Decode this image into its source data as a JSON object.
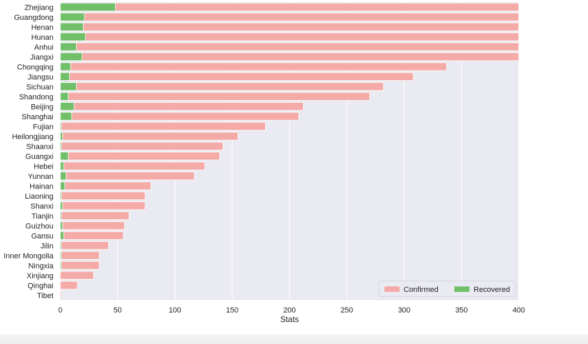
{
  "chart_data": {
    "type": "bar",
    "orientation": "horizontal",
    "stacked_overlay": true,
    "title": "",
    "xlabel": "Stats",
    "ylabel": "",
    "xlim": [
      0,
      400
    ],
    "xticks": [
      0,
      50,
      100,
      150,
      200,
      250,
      300,
      350,
      400
    ],
    "grid": true,
    "legend_placement": "bottom-right",
    "categories": [
      "Zhejiang",
      "Guangdong",
      "Henan",
      "Hunan",
      "Anhui",
      "Jiangxi",
      "Chongqing",
      "Jiangsu",
      "Sichuan",
      "Shandong",
      "Beijing",
      "Shanghai",
      "Fujian",
      "Heilongjiang",
      "Shaanxi",
      "Guangxi",
      "Hebei",
      "Yunnan",
      "Hainan",
      "Liaoning",
      "Shanxi",
      "Tianjin",
      "Guizhou",
      "Gansu",
      "Jilin",
      "Inner Mongolia",
      "Ningxia",
      "Xinjiang",
      "Qinghai",
      "Tibet"
    ],
    "series": [
      {
        "name": "Confirmed",
        "color": "#f4aba8",
        "values": [
          400,
          400,
          400,
          400,
          400,
          400,
          337,
          308,
          282,
          270,
          212,
          208,
          179,
          155,
          142,
          139,
          126,
          117,
          79,
          74,
          74,
          60,
          56,
          55,
          42,
          34,
          34,
          29,
          15,
          1
        ]
      },
      {
        "name": "Recovered",
        "color": "#72bf6a",
        "values": [
          48,
          21,
          20,
          22,
          14,
          19,
          9,
          8,
          14,
          7,
          12,
          10,
          1,
          2,
          1,
          7,
          3,
          5,
          4,
          1,
          2,
          1,
          2,
          3,
          1,
          1,
          1,
          0,
          0,
          0
        ]
      }
    ]
  },
  "colors": {
    "plot_background": "#eaeaf2",
    "grid": "#ffffff"
  }
}
